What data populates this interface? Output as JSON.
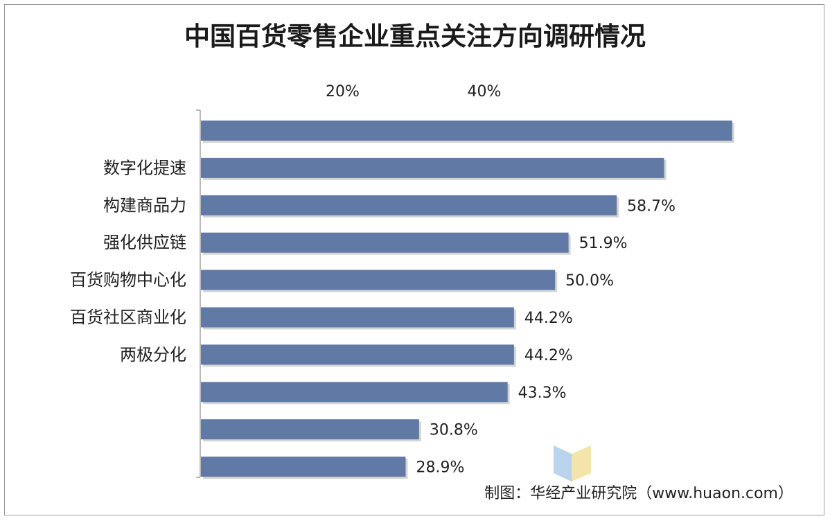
{
  "chart_data": {
    "type": "bar",
    "orientation": "horizontal",
    "title": "中国百货零售企业重点关注方向调研情况",
    "xlabel": "",
    "ylabel": "",
    "x_ticks": [
      "20%",
      "40%"
    ],
    "xlim": [
      0,
      76
    ],
    "grid": false,
    "legend": "none",
    "bar_color": "#6179a5",
    "categories": [
      "",
      "数字化提速",
      "构建商品力",
      "强化供应链",
      "百货购物中心化",
      "百货社区商业化",
      "两极分化",
      "",
      "",
      ""
    ],
    "values": [
      75.0,
      65.4,
      58.7,
      51.9,
      50.0,
      44.2,
      44.2,
      43.3,
      30.8,
      28.9
    ],
    "data_labels": [
      "",
      "",
      "58.7%",
      "51.9%",
      "50.0%",
      "44.2%",
      "44.2%",
      "43.3%",
      "30.8%",
      "28.9%"
    ],
    "source": "制图：华经产业研究院（www.huaon.com）"
  }
}
